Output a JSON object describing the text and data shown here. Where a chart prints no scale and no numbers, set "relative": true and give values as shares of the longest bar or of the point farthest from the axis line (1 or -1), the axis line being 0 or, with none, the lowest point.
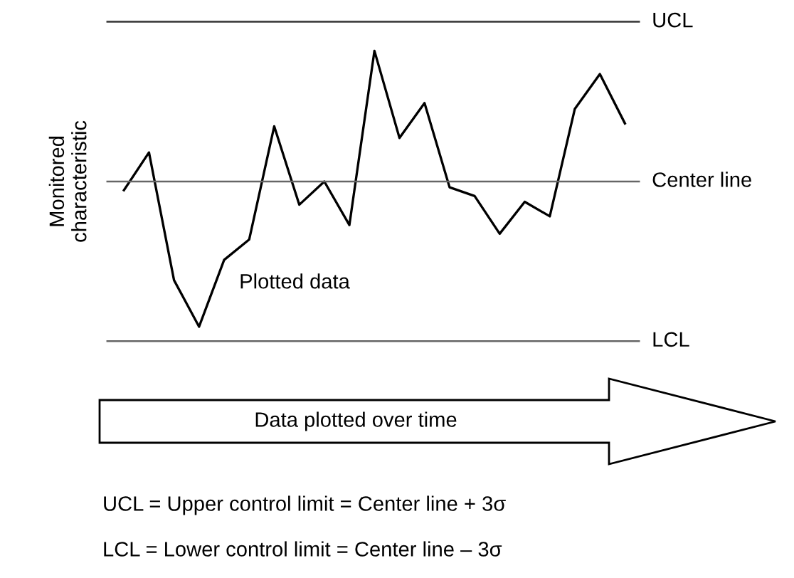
{
  "chart_data": {
    "type": "line",
    "relative": true,
    "ylabel": "Monitored\ncharacteristic",
    "categories": [
      null,
      null,
      null,
      null,
      null,
      null,
      null,
      null,
      null,
      null,
      null,
      null,
      null,
      null,
      null,
      null,
      null,
      null,
      null,
      null,
      null
    ],
    "series": [
      {
        "color": "#000000",
        "values": [
          0.52,
          0.65,
          0.21,
          0.05,
          0.28,
          0.35,
          0.74,
          0.47,
          0.55,
          0.4,
          1,
          0.7,
          0.82,
          0.53,
          0.5,
          0.37,
          0.48,
          0.43,
          0.8,
          0.92,
          0.75
        ]
      }
    ],
    "ref_lines": [
      {
        "axis": "y",
        "value": 1.1,
        "label": "UCL",
        "color": "#333333"
      },
      {
        "axis": "y",
        "value": 0.55,
        "label": "Center line",
        "color": "#666666"
      },
      {
        "axis": "y",
        "value": 0,
        "label": "LCL",
        "color": "#666666"
      }
    ],
    "annotations": [
      "Plotted data",
      "Data plotted over time",
      "UCL = Upper control limit = Center line + 3σ",
      "LCL = Lower control limit = Center line – 3σ"
    ],
    "legend": false,
    "marker": "none",
    "line_style": "solid"
  }
}
